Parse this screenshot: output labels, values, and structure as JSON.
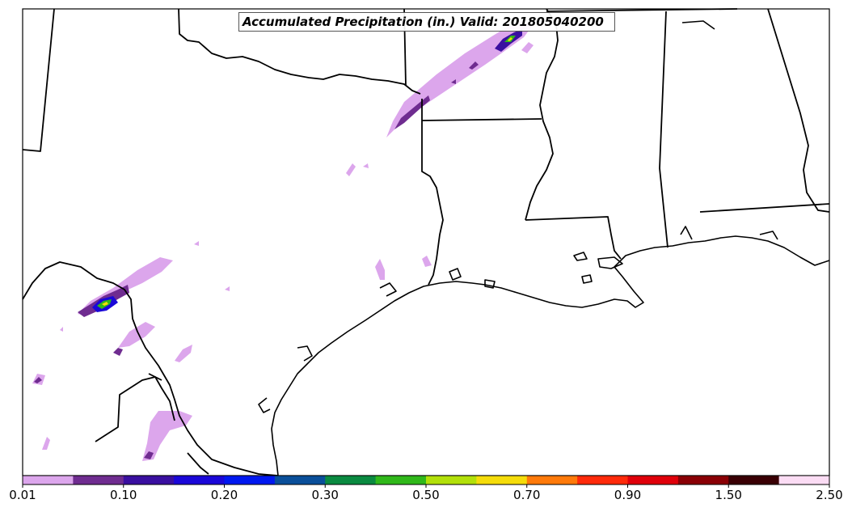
{
  "title": "Accumulated Precipitation (in.) Valid: 201805040200",
  "colorbar": {
    "colors": [
      "#dca6ec",
      "#6f2c90",
      "#3a0fa0",
      "#1a07d8",
      "#0018f0",
      "#0a4f9a",
      "#0a8a40",
      "#30b81a",
      "#b2e00a",
      "#f5dc0a",
      "#ff7a0a",
      "#ff2a0a",
      "#e0000a",
      "#8a0005",
      "#3a0004",
      "#fbdcf4"
    ],
    "tick_labels": [
      "0.01",
      "0.10",
      "0.20",
      "0.30",
      "0.50",
      "0.70",
      "0.90",
      "1.50",
      "2.50"
    ],
    "tick_bin_index": [
      0,
      2,
      4,
      6,
      8,
      10,
      12,
      14,
      16
    ]
  },
  "legend_colors": {
    "light": "#dca6ec",
    "dark": "#6f2c90",
    "blue": "#1a07d8",
    "green": "#30b81a",
    "yellow": "#f5dc0a"
  },
  "boundary_color": "#000000"
}
